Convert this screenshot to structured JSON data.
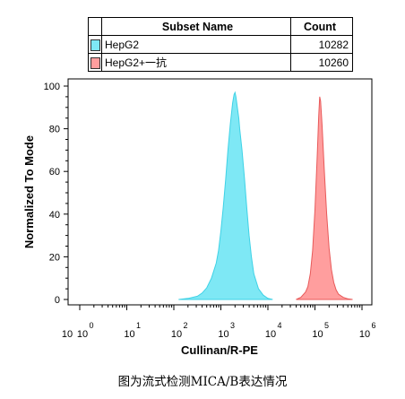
{
  "legend": {
    "header_name": "Subset Name",
    "header_count": "Count",
    "rows": [
      {
        "name": "HepG2",
        "count": "10282",
        "color": "#7ee8f5"
      },
      {
        "name": "HepG2+一抗",
        "count": "10260",
        "color": "#ff9e9e"
      }
    ]
  },
  "caption": "图为流式检测MICA/B表达情况",
  "chart_data": {
    "type": "area",
    "xlabel": "Cullinan/R-PE",
    "ylabel": "Normalized To Mode",
    "x_scale": "log",
    "xlim": [
      0,
      6
    ],
    "ylim": [
      0,
      100
    ],
    "x_tick_labels": [
      "0",
      "1",
      "2",
      "3",
      "4",
      "5",
      "6"
    ],
    "x_tick_prefix": "10",
    "x_tick_first": "10",
    "y_ticks": [
      0,
      20,
      40,
      60,
      80,
      100
    ],
    "series": [
      {
        "name": "HepG2",
        "color": "#7ee8f5",
        "stroke": "#3fd2e6",
        "x": [
          2.1,
          2.3,
          2.5,
          2.6,
          2.7,
          2.8,
          2.9,
          2.95,
          3.0,
          3.05,
          3.1,
          3.15,
          3.2,
          3.25,
          3.28,
          3.3,
          3.32,
          3.35,
          3.38,
          3.4,
          3.45,
          3.5,
          3.55,
          3.6,
          3.65,
          3.7,
          3.8,
          3.9,
          4.0,
          4.1
        ],
        "y": [
          0,
          0.5,
          1.5,
          3,
          5.5,
          10,
          17,
          23,
          32,
          43,
          56,
          70,
          82,
          92,
          96,
          97,
          95,
          90,
          85,
          80,
          70,
          57,
          43,
          30,
          20,
          12,
          5,
          2,
          0.5,
          0
        ]
      },
      {
        "name": "HepG2+一抗",
        "color": "#ff9e9e",
        "stroke": "#e85a5a",
        "x": [
          4.6,
          4.7,
          4.8,
          4.85,
          4.9,
          4.95,
          5.0,
          5.05,
          5.08,
          5.1,
          5.12,
          5.15,
          5.2,
          5.25,
          5.3,
          5.35,
          5.4,
          5.45,
          5.5,
          5.6,
          5.7,
          5.8
        ],
        "y": [
          0,
          1,
          3.5,
          6,
          12,
          23,
          42,
          68,
          86,
          95,
          93,
          82,
          60,
          40,
          24,
          14,
          8,
          4.5,
          2.5,
          1,
          0.3,
          0
        ]
      }
    ]
  }
}
